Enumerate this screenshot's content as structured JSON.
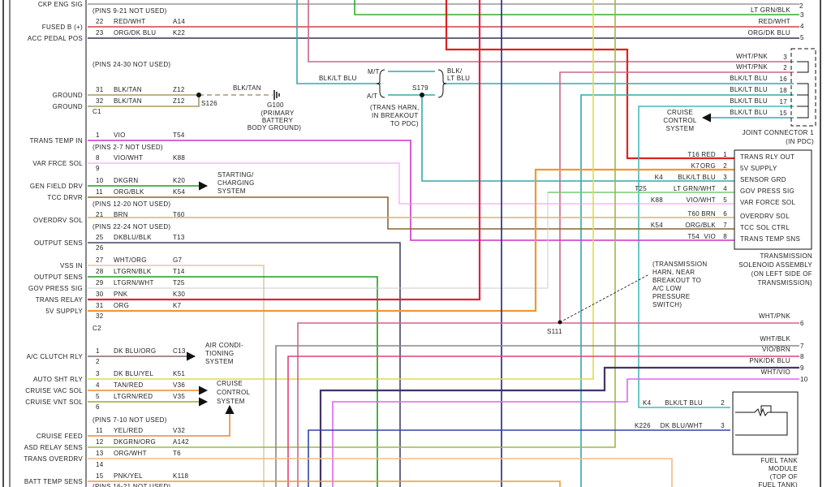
{
  "left_connector": {
    "rows": [
      {
        "pin": "",
        "color": "",
        "circuit": "",
        "function": "CKP ENG SIG"
      },
      {
        "pin": "22",
        "color": "RED/WHT",
        "circuit": "A14",
        "function": "FUSED B (+)"
      },
      {
        "pin": "23",
        "color": "ORG/DK BLU",
        "circuit": "K22",
        "function": "ACC PEDAL POS"
      },
      {
        "pin": "31",
        "color": "BLK/TAN",
        "circuit": "Z12",
        "function": "GROUND"
      },
      {
        "pin": "32",
        "color": "BLK/TAN",
        "circuit": "Z12",
        "function": "GROUND"
      },
      {
        "pin": "1",
        "color": "VIO",
        "circuit": "T54",
        "function": "TRANS TEMP IN"
      },
      {
        "pin": "8",
        "color": "VIO/WHT",
        "circuit": "K88",
        "function": "VAR FRCE SOL"
      },
      {
        "pin": "9",
        "color": "",
        "circuit": "",
        "function": ""
      },
      {
        "pin": "10",
        "color": "DKGRN",
        "circuit": "K20",
        "function": "GEN FIELD DRV"
      },
      {
        "pin": "11",
        "color": "ORG/BLK",
        "circuit": "K54",
        "function": "TCC DRVR"
      },
      {
        "pin": "21",
        "color": "BRN",
        "circuit": "T60",
        "function": "OVERDRV SOL"
      },
      {
        "pin": "25",
        "color": "DKBLU/BLK",
        "circuit": "T13",
        "function": "OUTPUT SENS"
      },
      {
        "pin": "26",
        "color": "",
        "circuit": "",
        "function": ""
      },
      {
        "pin": "27",
        "color": "WHT/ORG",
        "circuit": "G7",
        "function": "VSS IN"
      },
      {
        "pin": "28",
        "color": "LTGRN/BLK",
        "circuit": "T14",
        "function": "OUTPUT SENS"
      },
      {
        "pin": "29",
        "color": "LTGRN/WHT",
        "circuit": "T25",
        "function": "GOV PRESS SIG"
      },
      {
        "pin": "30",
        "color": "PNK",
        "circuit": "K30",
        "function": "TRANS RELAY"
      },
      {
        "pin": "31",
        "color": "ORG",
        "circuit": "K7",
        "function": "5V SUPPLY"
      },
      {
        "pin": "32",
        "color": "",
        "circuit": "",
        "function": ""
      },
      {
        "pin": "1",
        "color": "DK BLU/ORG",
        "circuit": "C13",
        "function": "A/C CLUTCH RLY"
      },
      {
        "pin": "2",
        "color": "",
        "circuit": "",
        "function": ""
      },
      {
        "pin": "3",
        "color": "DK BLU/YEL",
        "circuit": "K51",
        "function": "AUTO SHT RLY"
      },
      {
        "pin": "4",
        "color": "TAN/RED",
        "circuit": "V36",
        "function": "CRUISE VAC SOL"
      },
      {
        "pin": "5",
        "color": "LTGRN/RED",
        "circuit": "V35",
        "function": "CRUISE VNT SOL"
      },
      {
        "pin": "6",
        "color": "",
        "circuit": "",
        "function": ""
      },
      {
        "pin": "11",
        "color": "YEL/RED",
        "circuit": "V32",
        "function": "CRUISE FEED"
      },
      {
        "pin": "12",
        "color": "DKGRN/ORG",
        "circuit": "A142",
        "function": "ASD RELAY SENS"
      },
      {
        "pin": "13",
        "color": "ORG/WHT",
        "circuit": "T6",
        "function": "TRANS OVERDRV"
      },
      {
        "pin": "14",
        "color": "",
        "circuit": "",
        "function": ""
      },
      {
        "pin": "15",
        "color": "PNK/YEL",
        "circuit": "K118",
        "function": "BATT TEMP SENS"
      }
    ],
    "notes": [
      "(PINS 9-21 NOT USED)",
      "(PINS 24-30 NOT USED)",
      "(PINS 2-7 NOT USED)",
      "(PINS 12-20 NOT USED)",
      "(PINS 22-24 NOT USED)",
      "(PINS 7-10 NOT USED)",
      "(PINS 16-21 NOT USED)"
    ],
    "connector_labels": [
      "C1",
      "C2"
    ]
  },
  "ground": {
    "wire": "BLK/TAN",
    "splice": "S126",
    "ground_id": "G100",
    "desc": [
      "(PRIMARY",
      "BATTERY",
      "BODY GROUND)"
    ]
  },
  "starting_charging": [
    "STARTING/",
    "CHARGING",
    "SYSTEM"
  ],
  "air_conditioning": [
    "AIR CONDI-",
    "TIONING",
    "SYSTEM"
  ],
  "cruise_left": [
    "CRUISE",
    "CONTROL",
    "SYSTEM"
  ],
  "s179": {
    "splice": "S179",
    "mt": "M/T",
    "at": "A/T",
    "left_wire": "BLK/LT BLU",
    "right_wire": [
      "BLK/",
      "LT BLU"
    ],
    "note": [
      "(TRANS HARN,",
      "IN BREAKOUT",
      "TO PDC)"
    ]
  },
  "right_top": [
    {
      "color": "LT GRN/BLK",
      "pin": "3"
    },
    {
      "color": "RED/WHT",
      "pin": "4"
    },
    {
      "color": "ORG/DK BLU",
      "pin": "5"
    }
  ],
  "right_top_partial_pin": "2",
  "joint_connector": {
    "rows": [
      {
        "color": "WHT/PNK",
        "pin": "3"
      },
      {
        "color": "WHT/PNK",
        "pin": "2"
      },
      {
        "color": "BLK/LT BLU",
        "pin": "16"
      },
      {
        "color": "BLK/LT BLU",
        "pin": "18"
      },
      {
        "color": "BLK/LT BLU",
        "pin": "17"
      },
      {
        "color": "BLK/LT BLU",
        "pin": "15"
      }
    ],
    "title": [
      "JOINT CONNECTOR 1",
      "(IN PDC)"
    ],
    "cruise": [
      "CRUISE",
      "CONTROL",
      "SYSTEM"
    ]
  },
  "solenoid": {
    "rows": [
      {
        "circuit": "T16",
        "color": "RED",
        "pin": "1",
        "function": "TRANS RLY OUT"
      },
      {
        "circuit": "K7",
        "color": "ORG",
        "pin": "2",
        "function": "5V SUPPLY"
      },
      {
        "circuit": "K4",
        "color": "BLK/LT BLU",
        "pin": "3",
        "function": "SENSOR GRD"
      },
      {
        "circuit": "T25",
        "color": "LT GRN/WHT",
        "pin": "4",
        "function": "GOV PRESS SIG"
      },
      {
        "circuit": "K88",
        "color": "VIO/WHT",
        "pin": "5",
        "function": "VAR FORCE SOL"
      },
      {
        "circuit": "T60",
        "color": "BRN",
        "pin": "6",
        "function": "OVERDRV SOL"
      },
      {
        "circuit": "K54",
        "color": "ORG/BLK",
        "pin": "7",
        "function": "TCC SOL CTRL"
      },
      {
        "circuit": "T54",
        "color": "VIO",
        "pin": "8",
        "function": "TRANS TEMP SNS"
      }
    ],
    "title": [
      "TRANSMISSION",
      "SOLENOID ASSEMBLY",
      "(ON LEFT SIDE OF",
      "TRANSMISSION)"
    ]
  },
  "s111": {
    "splice": "S111",
    "note": [
      "(TRANSMISSION",
      "HARN, NEAR",
      "BREAKOUT TO",
      "A/C LOW",
      "PRESSURE",
      "SWITCH)"
    ]
  },
  "right_bottom": [
    {
      "color": "WHT/PNK",
      "pin": "6"
    },
    {
      "color": "WHT/BLK",
      "pin": "7"
    },
    {
      "color": "VIO/BRN",
      "pin": "8"
    },
    {
      "color": "PNK/DK BLU",
      "pin": "9"
    },
    {
      "color": "WHT/VIO",
      "pin": "10"
    }
  ],
  "fuel_tank": {
    "rows": [
      {
        "circuit": "K4",
        "color": "BLK/LT BLU",
        "pin": "2"
      },
      {
        "circuit": "K226",
        "color": "DK BLU/WHT",
        "pin": "3"
      }
    ],
    "title": [
      "FUEL TANK",
      "MODULE",
      "(TOP OF",
      "FUEL TANK)"
    ]
  }
}
